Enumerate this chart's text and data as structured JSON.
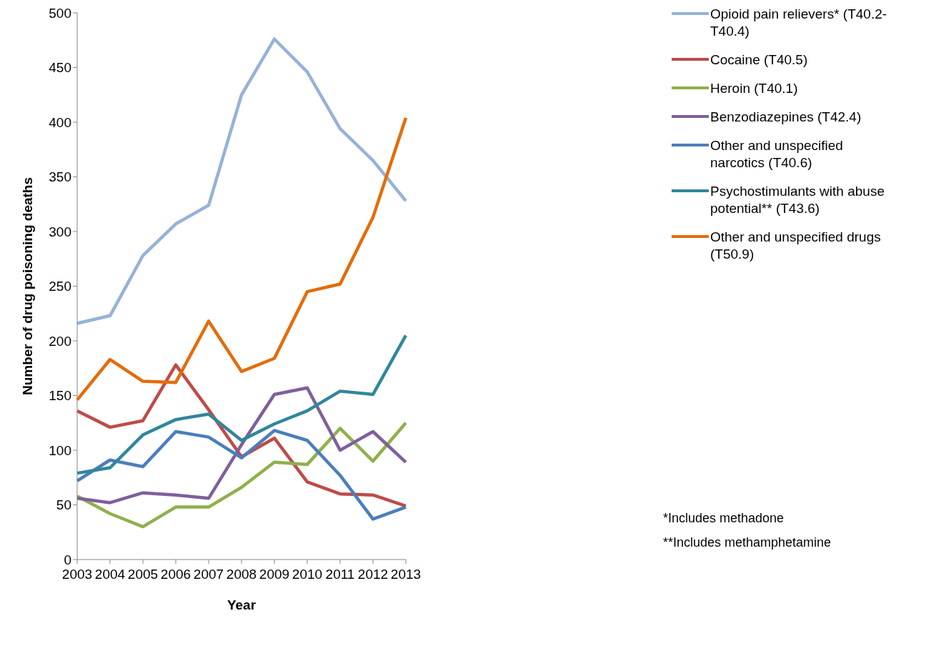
{
  "chart_data": {
    "type": "line",
    "xlabel": "Year",
    "ylabel": "Number of drug poisoning deaths",
    "categories": [
      "2003",
      "2004",
      "2005",
      "2006",
      "2007",
      "2008",
      "2009",
      "2010",
      "2011",
      "2012",
      "2013"
    ],
    "series": [
      {
        "name": "Opioid pain relievers* (T40.2-T40.4)",
        "color": "#95b3d7",
        "values": [
          216,
          223,
          278,
          307,
          324,
          425,
          476,
          446,
          394,
          365,
          328
        ]
      },
      {
        "name": "Cocaine (T40.5)",
        "color": "#be4b48",
        "values": [
          136,
          121,
          127,
          178,
          137,
          94,
          111,
          71,
          60,
          59,
          49
        ]
      },
      {
        "name": "Heroin (T40.1)",
        "color": "#8fb04c",
        "values": [
          58,
          42,
          30,
          48,
          48,
          66,
          89,
          87,
          120,
          90,
          125
        ]
      },
      {
        "name": "Benzodiazepines (T42.4)",
        "color": "#7e5f9c",
        "values": [
          56,
          52,
          61,
          59,
          56,
          105,
          151,
          157,
          100,
          117,
          89
        ]
      },
      {
        "name": "Other and unspecified narcotics (T40.6)",
        "color": "#4a7ebb",
        "values": [
          72,
          91,
          85,
          117,
          112,
          93,
          118,
          109,
          77,
          37,
          48
        ]
      },
      {
        "name": "Psychostimulants with abuse potential** (T43.6)",
        "color": "#31869c",
        "values": [
          79,
          84,
          114,
          128,
          133,
          109,
          124,
          136,
          154,
          151,
          205
        ]
      },
      {
        "name": "Other and unspecified drugs (T50.9)",
        "color": "#e46c0a",
        "values": [
          146,
          183,
          163,
          162,
          218,
          172,
          184,
          245,
          252,
          313,
          404
        ]
      }
    ],
    "ylim": [
      0,
      500
    ],
    "yticks": [
      0,
      50,
      100,
      150,
      200,
      250,
      300,
      350,
      400,
      450,
      500
    ],
    "grid": false,
    "legend": "right",
    "marker": "none",
    "line_style": "solid",
    "annotations": [
      "*Includes methadone",
      "**Includes methamphetamine"
    ]
  }
}
